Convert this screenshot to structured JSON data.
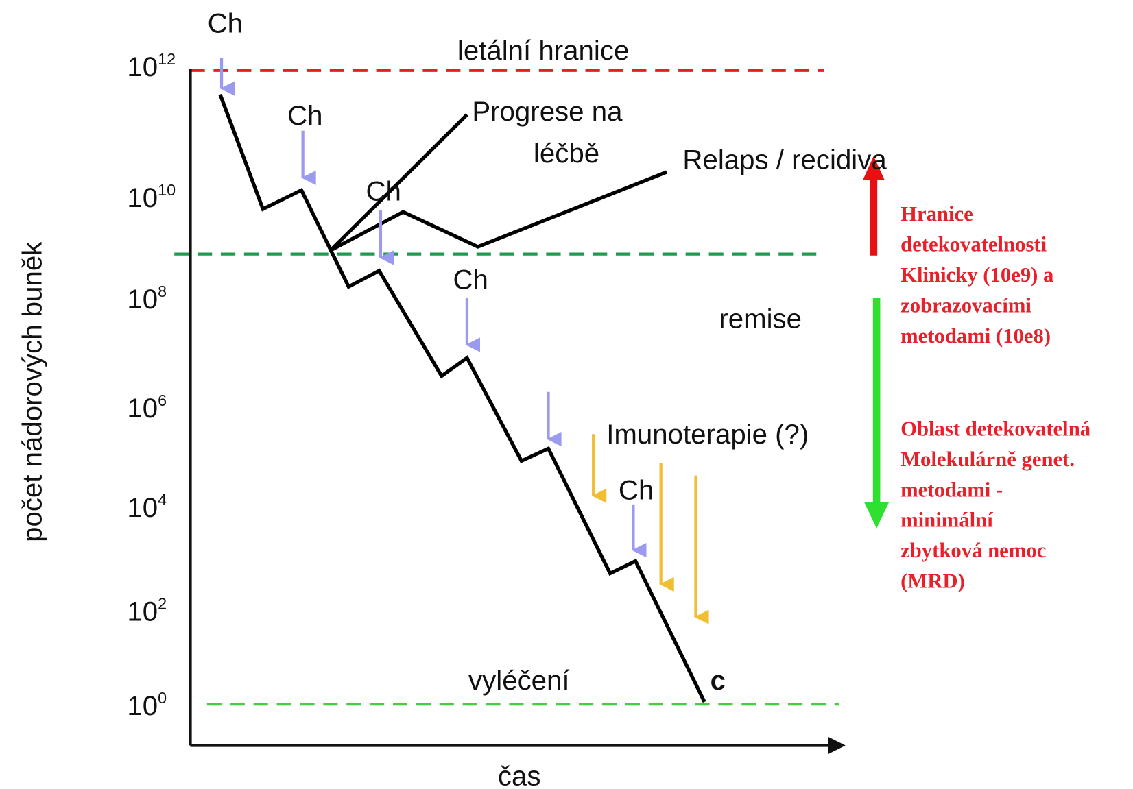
{
  "y_axis": {
    "label": "počet nádorových buněk",
    "ticks": [
      {
        "base": "10",
        "exp": "12"
      },
      {
        "base": "10",
        "exp": "10"
      },
      {
        "base": "10",
        "exp": "8"
      },
      {
        "base": "10",
        "exp": "6"
      },
      {
        "base": "10",
        "exp": "4"
      },
      {
        "base": "10",
        "exp": "2"
      },
      {
        "base": "10",
        "exp": "0"
      }
    ]
  },
  "x_axis": {
    "label": "čas"
  },
  "lines": {
    "lethal": "letální hranice",
    "progression": [
      "Progrese na",
      "léčbě"
    ],
    "relapse": "Relaps / recidiva",
    "remission": "remise",
    "immunotherapy": "Imunoterapie (?)",
    "cure": "vyléčení",
    "end": "c"
  },
  "chemo_labels": [
    "Ch",
    "Ch",
    "Ch",
    "Ch",
    "Ch"
  ],
  "notes": {
    "detection": [
      "Hranice",
      "detekovatelnosti",
      "Klinicky (10e9) a",
      "zobrazovacími",
      "metodami (10e8)"
    ],
    "mrd": [
      "Oblast detekovatelná",
      "Molekulárně genet.",
      "metodami  -",
      "minimální",
      "zbytková nemoc",
      "(MRD)"
    ]
  }
}
